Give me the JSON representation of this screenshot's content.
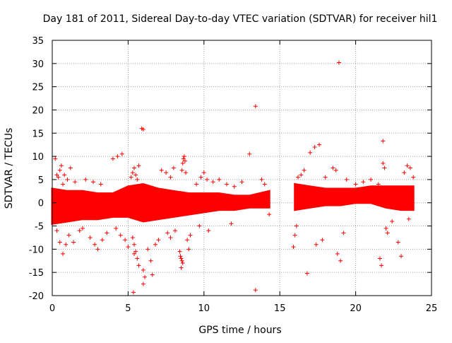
{
  "chart_data": {
    "type": "scatter",
    "title": "Day 181 of 2011, Sidereal Day-to-day VTEC variation (SDTVAR) for receiver hil1",
    "xlabel": "GPS time / hours",
    "ylabel": "SDTVAR / TECUs",
    "xlim": [
      0,
      25
    ],
    "ylim": [
      -20,
      35
    ],
    "xticks": [
      0,
      5,
      10,
      15,
      20,
      25
    ],
    "yticks": [
      -20,
      -15,
      -10,
      -5,
      0,
      5,
      10,
      15,
      20,
      25,
      30,
      35
    ],
    "xtick_labels": [
      "0",
      "5",
      "10",
      "15",
      "20",
      "25"
    ],
    "ytick_labels": [
      "-20",
      "-15",
      "-10",
      "-5",
      "0",
      "5",
      "10",
      "15",
      "20",
      "25",
      "30",
      "35"
    ],
    "grid": true,
    "marker": "+",
    "color": "#ff0000",
    "dense_band": [
      {
        "x": 0.0,
        "low": -4.5,
        "high": 3.0
      },
      {
        "x": 1.0,
        "low": -4.0,
        "high": 2.5
      },
      {
        "x": 2.0,
        "low": -3.5,
        "high": 2.5
      },
      {
        "x": 3.0,
        "low": -3.5,
        "high": 2.0
      },
      {
        "x": 4.0,
        "low": -3.0,
        "high": 2.0
      },
      {
        "x": 5.0,
        "low": -3.0,
        "high": 3.5
      },
      {
        "x": 6.0,
        "low": -4.0,
        "high": 4.0
      },
      {
        "x": 7.0,
        "low": -3.5,
        "high": 3.0
      },
      {
        "x": 8.0,
        "low": -3.0,
        "high": 2.5
      },
      {
        "x": 9.0,
        "low": -2.5,
        "high": 2.0
      },
      {
        "x": 10.0,
        "low": -2.0,
        "high": 2.0
      },
      {
        "x": 11.0,
        "low": -1.5,
        "high": 2.0
      },
      {
        "x": 12.0,
        "low": -1.5,
        "high": 1.5
      },
      {
        "x": 13.0,
        "low": -1.0,
        "high": 1.5
      },
      {
        "x": 14.3,
        "low": -1.0,
        "high": 2.5
      },
      {
        "x": 16.0,
        "low": -1.5,
        "high": 4.0
      },
      {
        "x": 17.0,
        "low": -1.0,
        "high": 3.5
      },
      {
        "x": 18.0,
        "low": -0.5,
        "high": 3.0
      },
      {
        "x": 19.0,
        "low": -0.5,
        "high": 3.0
      },
      {
        "x": 20.0,
        "low": 0.0,
        "high": 3.0
      },
      {
        "x": 21.0,
        "low": 0.0,
        "high": 3.5
      },
      {
        "x": 22.0,
        "low": -1.0,
        "high": 3.5
      },
      {
        "x": 23.0,
        "low": -1.5,
        "high": 3.5
      },
      {
        "x": 23.8,
        "low": -1.5,
        "high": 3.5
      }
    ],
    "gap": [
      14.4,
      15.9
    ],
    "points": [
      [
        0.2,
        9.5
      ],
      [
        0.3,
        6.0
      ],
      [
        0.4,
        5.5
      ],
      [
        0.5,
        7.0
      ],
      [
        0.6,
        8.0
      ],
      [
        0.7,
        4.0
      ],
      [
        0.8,
        6.0
      ],
      [
        1.0,
        5.0
      ],
      [
        1.2,
        7.5
      ],
      [
        1.5,
        4.5
      ],
      [
        0.3,
        -6.0
      ],
      [
        0.5,
        -8.5
      ],
      [
        0.7,
        -11.0
      ],
      [
        0.9,
        -9.0
      ],
      [
        1.1,
        -7.0
      ],
      [
        1.4,
        -8.5
      ],
      [
        1.8,
        -6.0
      ],
      [
        2.0,
        -5.5
      ],
      [
        2.5,
        -7.5
      ],
      [
        2.8,
        -9.0
      ],
      [
        3.0,
        -10.0
      ],
      [
        3.3,
        -8.0
      ],
      [
        3.6,
        -6.5
      ],
      [
        2.2,
        5.0
      ],
      [
        2.7,
        4.5
      ],
      [
        3.2,
        4.0
      ],
      [
        4.0,
        9.5
      ],
      [
        4.3,
        10.0
      ],
      [
        4.6,
        10.5
      ],
      [
        4.5,
        -7.0
      ],
      [
        4.8,
        -8.0
      ],
      [
        5.0,
        -9.5
      ],
      [
        4.2,
        -5.5
      ],
      [
        5.2,
        5.5
      ],
      [
        5.3,
        6.5
      ],
      [
        5.4,
        7.5
      ],
      [
        5.5,
        6.0
      ],
      [
        5.6,
        5.0
      ],
      [
        5.7,
        8.0
      ],
      [
        5.3,
        -7.5
      ],
      [
        5.4,
        -9.0
      ],
      [
        5.5,
        -10.5
      ],
      [
        5.6,
        -12.0
      ],
      [
        5.7,
        -13.5
      ],
      [
        5.35,
        -19.3
      ],
      [
        5.4,
        -11.0
      ],
      [
        5.9,
        16.0
      ],
      [
        6.0,
        15.8
      ],
      [
        6.0,
        -14.5
      ],
      [
        6.1,
        -16.0
      ],
      [
        6.0,
        -17.5
      ],
      [
        6.3,
        -10.0
      ],
      [
        6.5,
        -12.5
      ],
      [
        6.6,
        -15.5
      ],
      [
        6.8,
        -9.0
      ],
      [
        7.0,
        -8.0
      ],
      [
        7.2,
        7.0
      ],
      [
        7.5,
        6.5
      ],
      [
        7.8,
        5.5
      ],
      [
        8.0,
        7.5
      ],
      [
        7.6,
        -6.5
      ],
      [
        7.8,
        -7.5
      ],
      [
        8.1,
        -6.0
      ],
      [
        8.4,
        -10.5
      ],
      [
        8.45,
        -11.5
      ],
      [
        8.5,
        -12.0
      ],
      [
        8.55,
        -12.5
      ],
      [
        8.6,
        -13.0
      ],
      [
        8.5,
        -14.0
      ],
      [
        8.55,
        7.0
      ],
      [
        8.6,
        8.5
      ],
      [
        8.65,
        9.5
      ],
      [
        8.7,
        10.0
      ],
      [
        8.75,
        9.0
      ],
      [
        8.8,
        6.5
      ],
      [
        8.9,
        -8.0
      ],
      [
        9.0,
        -10.0
      ],
      [
        9.1,
        -7.0
      ],
      [
        9.5,
        4.0
      ],
      [
        9.8,
        5.5
      ],
      [
        10.0,
        6.5
      ],
      [
        10.2,
        5.0
      ],
      [
        9.7,
        -5.0
      ],
      [
        10.3,
        -6.0
      ],
      [
        10.6,
        4.5
      ],
      [
        11.0,
        5.0
      ],
      [
        11.5,
        4.0
      ],
      [
        11.8,
        -4.5
      ],
      [
        12.0,
        3.5
      ],
      [
        12.5,
        4.5
      ],
      [
        13.0,
        10.5
      ],
      [
        13.4,
        20.8
      ],
      [
        13.4,
        -18.8
      ],
      [
        13.8,
        5.0
      ],
      [
        14.0,
        4.0
      ],
      [
        14.3,
        -2.5
      ],
      [
        15.9,
        -9.5
      ],
      [
        16.0,
        -7.0
      ],
      [
        16.1,
        -5.0
      ],
      [
        16.2,
        5.5
      ],
      [
        16.4,
        6.0
      ],
      [
        16.6,
        7.0
      ],
      [
        16.8,
        -15.2
      ],
      [
        17.0,
        10.8
      ],
      [
        17.3,
        12.0
      ],
      [
        17.6,
        12.5
      ],
      [
        17.4,
        -9.0
      ],
      [
        17.8,
        -8.0
      ],
      [
        18.0,
        5.5
      ],
      [
        18.5,
        7.5
      ],
      [
        18.7,
        7.0
      ],
      [
        18.9,
        30.2
      ],
      [
        19.0,
        -12.5
      ],
      [
        18.8,
        -11.0
      ],
      [
        19.2,
        -6.5
      ],
      [
        19.4,
        5.0
      ],
      [
        20.0,
        4.0
      ],
      [
        20.5,
        4.5
      ],
      [
        21.0,
        5.0
      ],
      [
        21.5,
        4.0
      ],
      [
        21.6,
        -12.0
      ],
      [
        21.7,
        -13.5
      ],
      [
        21.8,
        13.3
      ],
      [
        21.8,
        8.5
      ],
      [
        21.9,
        7.5
      ],
      [
        22.0,
        -5.5
      ],
      [
        22.1,
        -6.5
      ],
      [
        22.4,
        -4.0
      ],
      [
        22.8,
        -8.5
      ],
      [
        23.0,
        -11.5
      ],
      [
        23.2,
        6.5
      ],
      [
        23.4,
        8.0
      ],
      [
        23.6,
        7.5
      ],
      [
        23.8,
        5.5
      ],
      [
        23.5,
        -3.5
      ]
    ]
  }
}
